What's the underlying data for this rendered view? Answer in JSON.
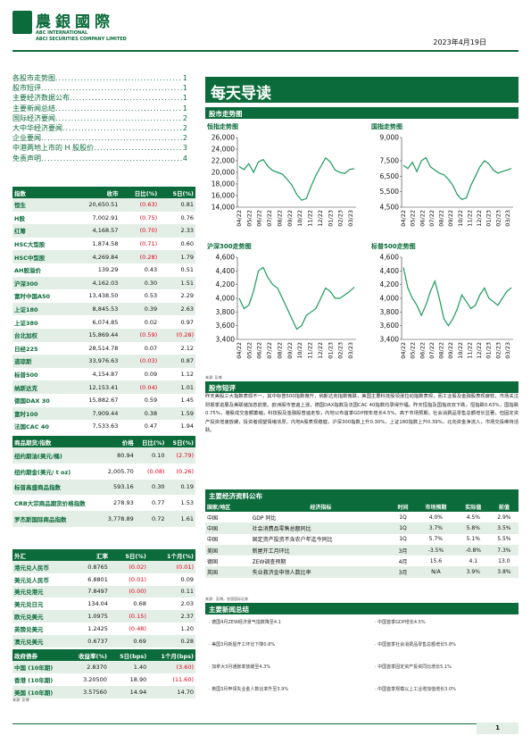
{
  "header": {
    "logo_cn": "農銀國際",
    "logo_en1": "ABC INTERNATIONAL",
    "logo_en2": "ABCI SECURITIES COMPANY LIMITED",
    "date": "2023年4月19日"
  },
  "toc": [
    {
      "label": "各股市走势图",
      "page": "1"
    },
    {
      "label": "股市短评",
      "page": "1"
    },
    {
      "label": "主要经济数据公布",
      "page": "1"
    },
    {
      "label": "主要新闻总结",
      "page": "1"
    },
    {
      "label": "国际经济要闻",
      "page": "2"
    },
    {
      "label": "大中华经济要闻",
      "page": "2"
    },
    {
      "label": "企业要闻",
      "page": "2"
    },
    {
      "label": "中港两地上市的 H 股股价",
      "page": "3"
    },
    {
      "label": "免责声明",
      "page": "4"
    }
  ],
  "index_table": {
    "headers": [
      "指数",
      "收市",
      "日比(%)",
      "5日(%)"
    ],
    "rows": [
      [
        "恒生",
        "20,650.51",
        "(0.63)",
        "0.81"
      ],
      [
        "H股",
        "7,002.91",
        "(0.75)",
        "0.76"
      ],
      [
        "红筹",
        "4,168.57",
        "(0.70)",
        "2.33"
      ],
      [
        "HSC大型股",
        "1,874.58",
        "(0.71)",
        "0.60"
      ],
      [
        "HSC中型股",
        "4,269.84",
        "(0.28)",
        "1.79"
      ],
      [
        "AH股溢价",
        "139.29",
        "0.43",
        "0.51"
      ],
      [
        "沪深300",
        "4,162.03",
        "0.30",
        "1.51"
      ],
      [
        "富时中国A50",
        "13,438.50",
        "0.53",
        "2.29"
      ],
      [
        "上证180",
        "8,845.53",
        "0.39",
        "2.63"
      ],
      [
        "上证380",
        "6,074.85",
        "0.02",
        "0.97"
      ],
      [
        "台北加权",
        "15,869.44",
        "(0.59)",
        "(0.28)"
      ],
      [
        "日经225",
        "28,514.78",
        "0.07",
        "2.12"
      ],
      [
        "道琼斯",
        "33,976.63",
        "(0.03)",
        "0.87"
      ],
      [
        "标普500",
        "4,154.87",
        "0.09",
        "1.12"
      ],
      [
        "纳斯达克",
        "12,153.41",
        "(0.04)",
        "1.01"
      ],
      [
        "德国DAX 30",
        "15,882.67",
        "0.59",
        "1.45"
      ],
      [
        "富时100",
        "7,909.44",
        "0.38",
        "1.59"
      ],
      [
        "法国CAC 40",
        "7,533.63",
        "0.47",
        "1.94"
      ]
    ]
  },
  "commodity_table": {
    "headers": [
      "商品期货/指数",
      "价格",
      "日比(%)",
      "5日(%)"
    ],
    "rows": [
      [
        "纽约期油(美元/桶)",
        "80.94",
        "0.10",
        "(2.79)"
      ],
      [
        "纽约期金(美元/ t oz)",
        "2,005.70",
        "(0.08)",
        "(0.26)"
      ],
      [
        "标普高盛商品指数",
        "593.16",
        "0.30",
        "0.19"
      ],
      [
        "CRB大宗商品期货价格指数",
        "278.93",
        "0.77",
        "1.53"
      ],
      [
        "罗杰斯国际商品指数",
        "3,778.89",
        "0.72",
        "1.61"
      ]
    ]
  },
  "fx_table": {
    "headers": [
      "外汇",
      "汇率",
      "5日(%)",
      "1个月(%)"
    ],
    "rows": [
      [
        "港元兑人民币",
        "0.8765",
        "(0.02)",
        "(0.01)"
      ],
      [
        "美元兑人民币",
        "6.8801",
        "(0.01)",
        "0.09"
      ],
      [
        "美元兑港元",
        "7.8497",
        "(0.00)",
        "0.11"
      ],
      [
        "美元兑日元",
        "134.04",
        "0.68",
        "2.03"
      ],
      [
        "欧元兑美元",
        "1.0975",
        "(0.15)",
        "2.37"
      ],
      [
        "英镑兑美元",
        "1.2425",
        "(0.48)",
        "1.20"
      ],
      [
        "澳元兑美元",
        "0.6737",
        "0.69",
        "0.28"
      ]
    ]
  },
  "bond_table": {
    "headers": [
      "政府债券",
      "收益率(%)",
      "5日(bps)",
      "1个月(bps)"
    ],
    "rows": [
      [
        "中国 (10年期)",
        "2.8370",
        "1.40",
        "(3.60)"
      ],
      [
        "香港 (10年期)",
        "3.20500",
        "18.90",
        "(11.60)"
      ],
      [
        "美国 (10年期)",
        "3.57560",
        "14.94",
        "14.70"
      ]
    ]
  },
  "source_left": "来源: 彭博",
  "banner_title": "每天导读",
  "chart_section_title": "股市走势图",
  "chart_source": "来源: 彭博",
  "chart_data": [
    {
      "type": "line",
      "title": "恒指走势图",
      "ylim": [
        14000,
        26000
      ],
      "yticks": [
        "26,000",
        "24,000",
        "22,000",
        "20,000",
        "18,000",
        "16,000",
        "14,000"
      ],
      "xticks": [
        "04/22",
        "05/22",
        "06/22",
        "07/22",
        "08/22",
        "09/22",
        "10/22",
        "11/22",
        "12/22",
        "01/23",
        "02/23",
        "03/23"
      ],
      "values": [
        21000,
        20500,
        21500,
        20000,
        21800,
        22200,
        21000,
        20300,
        20000,
        19700,
        18800,
        17800,
        16200,
        15200,
        15500,
        17600,
        19500,
        21000,
        22500,
        21800,
        20400,
        20000,
        19800,
        20500,
        20650
      ]
    },
    {
      "type": "line",
      "title": "国指走势图",
      "ylim": [
        4500,
        9000
      ],
      "yticks": [
        "9,000",
        "7,500",
        "6,500",
        "5,500",
        "4,500"
      ],
      "xticks": [
        "04/22",
        "05/22",
        "06/22",
        "07/22",
        "08/22",
        "09/22",
        "10/22",
        "11/22",
        "12/22",
        "01/23",
        "02/23",
        "03/23"
      ],
      "values": [
        7200,
        7000,
        7400,
        6800,
        7500,
        7700,
        7100,
        6900,
        6700,
        6600,
        6300,
        5900,
        5300,
        5000,
        5100,
        5900,
        6500,
        7100,
        7500,
        7300,
        6900,
        6700,
        6800,
        6900,
        7000
      ]
    },
    {
      "type": "line",
      "title": "沪深300走势图",
      "ylim": [
        3400,
        4600
      ],
      "yticks": [
        "4,600",
        "4,400",
        "4,200",
        "4,000",
        "3,800",
        "3,600",
        "3,400"
      ],
      "xticks": [
        "04/22",
        "05/22",
        "06/22",
        "07/22",
        "08/22",
        "09/22",
        "10/22",
        "11/22",
        "12/22",
        "01/23",
        "02/23",
        "03/23"
      ],
      "values": [
        4000,
        3850,
        3900,
        4100,
        4400,
        4450,
        4300,
        4200,
        4150,
        4000,
        3850,
        3700,
        3550,
        3600,
        3750,
        3800,
        3850,
        4000,
        4150,
        4100,
        4000,
        4000,
        4050,
        4100,
        4162
      ]
    },
    {
      "type": "line",
      "title": "标普500走势图",
      "ylim": [
        3400,
        4600
      ],
      "yticks": [
        "4,600",
        "4,400",
        "4,200",
        "4,000",
        "3,800",
        "3,600",
        "3,400"
      ],
      "xticks": [
        "04/22",
        "05/22",
        "06/22",
        "07/22",
        "08/22",
        "09/22",
        "10/22",
        "11/22",
        "12/22",
        "01/23",
        "02/23",
        "03/23"
      ],
      "values": [
        4450,
        4150,
        4000,
        3900,
        3750,
        3900,
        4100,
        4250,
        4000,
        3700,
        3600,
        3700,
        3850,
        4050,
        3950,
        3850,
        3900,
        4050,
        4150,
        4000,
        3950,
        3900,
        4000,
        4100,
        4155
      ]
    }
  ],
  "commentary_title": "股市短评",
  "commentary_text": "昨天美股三大指数表现不一，其中标普500指数微升，纳斯达克指数微跌，美国主要科技股领涨拉动指数表现，而工业股及金融股表现疲软，市场关注财报季进展及美联储加息前景。欧洲股市普遍上涨，德国DAX指数及法国CAC 40指数均录得升幅。昨天恒指及国指双双下跌，恒指跌0.63%，国指跌0.75%，港股成交金额萎缩，科技股及金融股普遍走软，内地公布首季GDP按年增长4.5%，高于市场预期，社会消费品零售总额增长显著，但固定资产投资增速放缓，投资者观望情绪浓厚。内地A股表现稳健，沪深300指数上升0.30%，上证180指数上升0.39%，北向资金净流入，市场交投维持活跃。",
  "econ_title": "主要经济资料公布",
  "econ_table": {
    "headers": [
      "国家/地区",
      "经济指标",
      "时间",
      "市场预期",
      "实际值",
      "前值"
    ],
    "rows": [
      [
        "中国",
        "GDP 同比",
        "1Q",
        "4.0%",
        "4.5%",
        "2.9%"
      ],
      [
        "中国",
        "社会消费品零售总额同比",
        "1Q",
        "3.7%",
        "5.8%",
        "3.5%"
      ],
      [
        "中国",
        "固定资产投资不含农户年迄今同比",
        "1Q",
        "5.7%",
        "5.1%",
        "5.5%"
      ],
      [
        "美国",
        "新屋开工月环比",
        "3月",
        "-3.5%",
        "-0.8%",
        "7.3%"
      ],
      [
        "德国",
        "ZEW调查预期",
        "4月",
        "15.6",
        "4.1",
        "13.0"
      ],
      [
        "英国",
        "失业救济金申领人数比率",
        "3月",
        "N/A",
        "3.9%",
        "3.8%"
      ]
    ],
    "source": "来源：彭博，农银国际证券"
  },
  "news_title": "主要新闻总结",
  "news": [
    "· 德国4月ZEW经济景气指数降至4.1",
    "· 美国3月新屋开工环比下降0.8%",
    "· 加拿大3月通胀率放缓至4.3%",
    "· 英国3月申领失业金人数比率升至3.9%",
    "· 中国首季GDP增长4.5%",
    "· 中国首季社会消费品零售总额增长5.8%",
    "· 中国首季固定资产投资同比增长5.1%",
    "· 中国首季规模以上工业增加值增长3.0%"
  ],
  "page_number": "1"
}
